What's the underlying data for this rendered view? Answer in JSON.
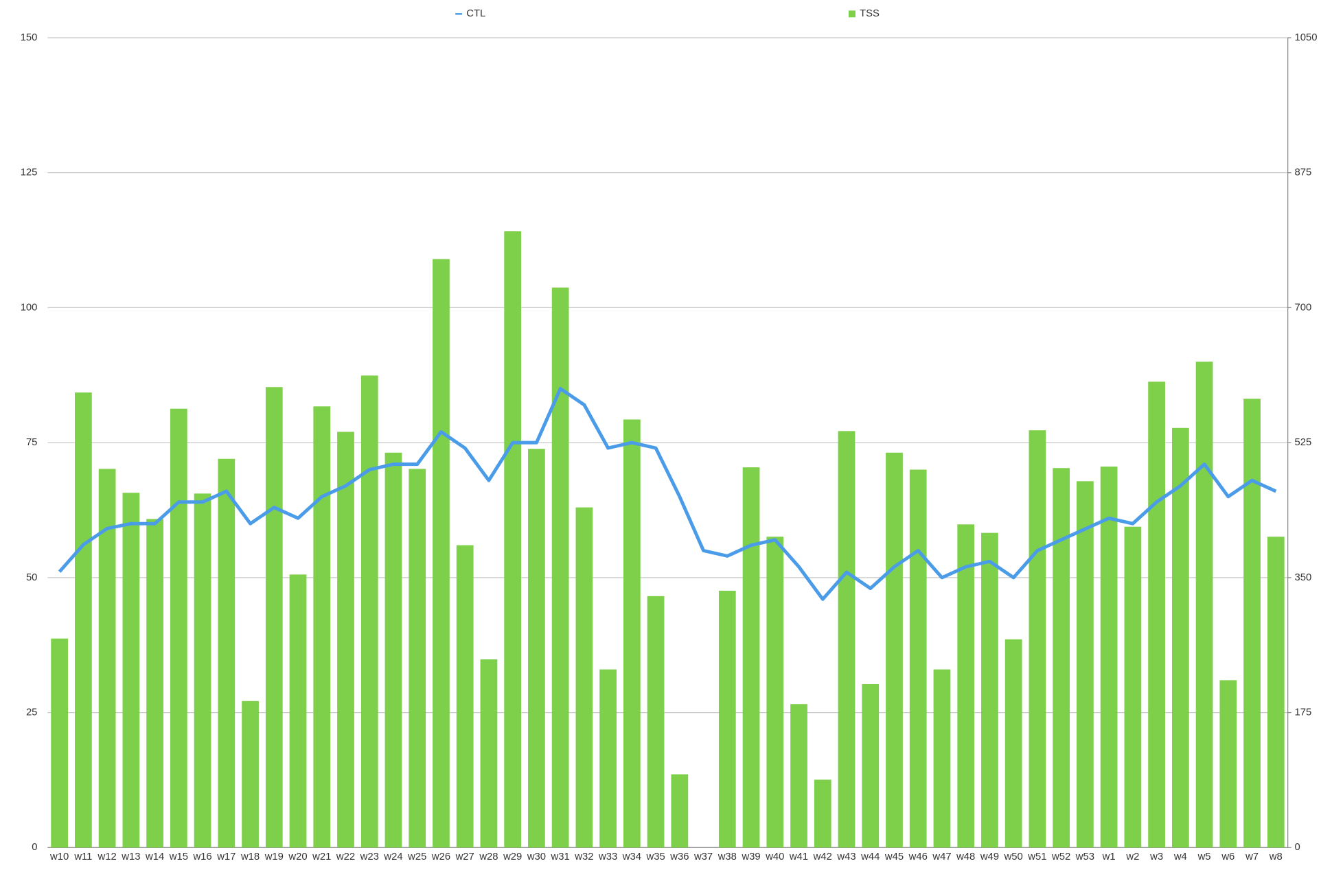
{
  "chart_data": {
    "type": "bar-line",
    "categories": [
      "w10",
      "w11",
      "w12",
      "w13",
      "w14",
      "w15",
      "w16",
      "w17",
      "w18",
      "w19",
      "w20",
      "w21",
      "w22",
      "w23",
      "w24",
      "w25",
      "w26",
      "w27",
      "w28",
      "w29",
      "w30",
      "w31",
      "w32",
      "w33",
      "w34",
      "w35",
      "w36",
      "w37",
      "w38",
      "w39",
      "w40",
      "w41",
      "w42",
      "w43",
      "w44",
      "w45",
      "w46",
      "w47",
      "w48",
      "w49",
      "w50",
      "w51",
      "w52",
      "w53",
      "w1",
      "w2",
      "w3",
      "w4",
      "w5",
      "w6",
      "w7",
      "w8"
    ],
    "series": [
      {
        "name": "CTL",
        "type": "line",
        "color": "#4a9be8",
        "axis": "y",
        "values": [
          51.1,
          56.1,
          59.1,
          60,
          60,
          64,
          64,
          66,
          60,
          63,
          61,
          65,
          67,
          70,
          71,
          71,
          77,
          74,
          68,
          75,
          75,
          85,
          82,
          74,
          75,
          74,
          65,
          55,
          54,
          56,
          57,
          52,
          46,
          51,
          48,
          52,
          55,
          50,
          52,
          53,
          50,
          55,
          57,
          59,
          61,
          60,
          64,
          67,
          71,
          65,
          68,
          66
        ]
      },
      {
        "name": "TSS",
        "type": "bar",
        "color": "#7ed04b",
        "axis": "y2",
        "values": [
          271,
          590,
          491,
          460,
          426,
          569,
          459,
          504,
          190,
          597,
          354,
          572,
          539,
          612,
          512,
          491,
          763,
          392,
          244,
          799,
          517,
          726,
          441,
          231,
          555,
          326,
          95,
          0,
          333,
          493,
          403,
          186,
          88,
          540,
          212,
          512,
          490,
          231,
          419,
          408,
          270,
          541,
          492,
          475,
          494,
          416,
          604,
          544,
          630,
          217,
          582,
          403
        ]
      }
    ],
    "ylim": [
      0,
      150
    ],
    "yticks": [
      0,
      25,
      50,
      75,
      100,
      125,
      150
    ],
    "y2lim": [
      0,
      1050
    ],
    "y2ticks": [
      0,
      175,
      350,
      525,
      700,
      875,
      1050
    ],
    "grid": true
  }
}
